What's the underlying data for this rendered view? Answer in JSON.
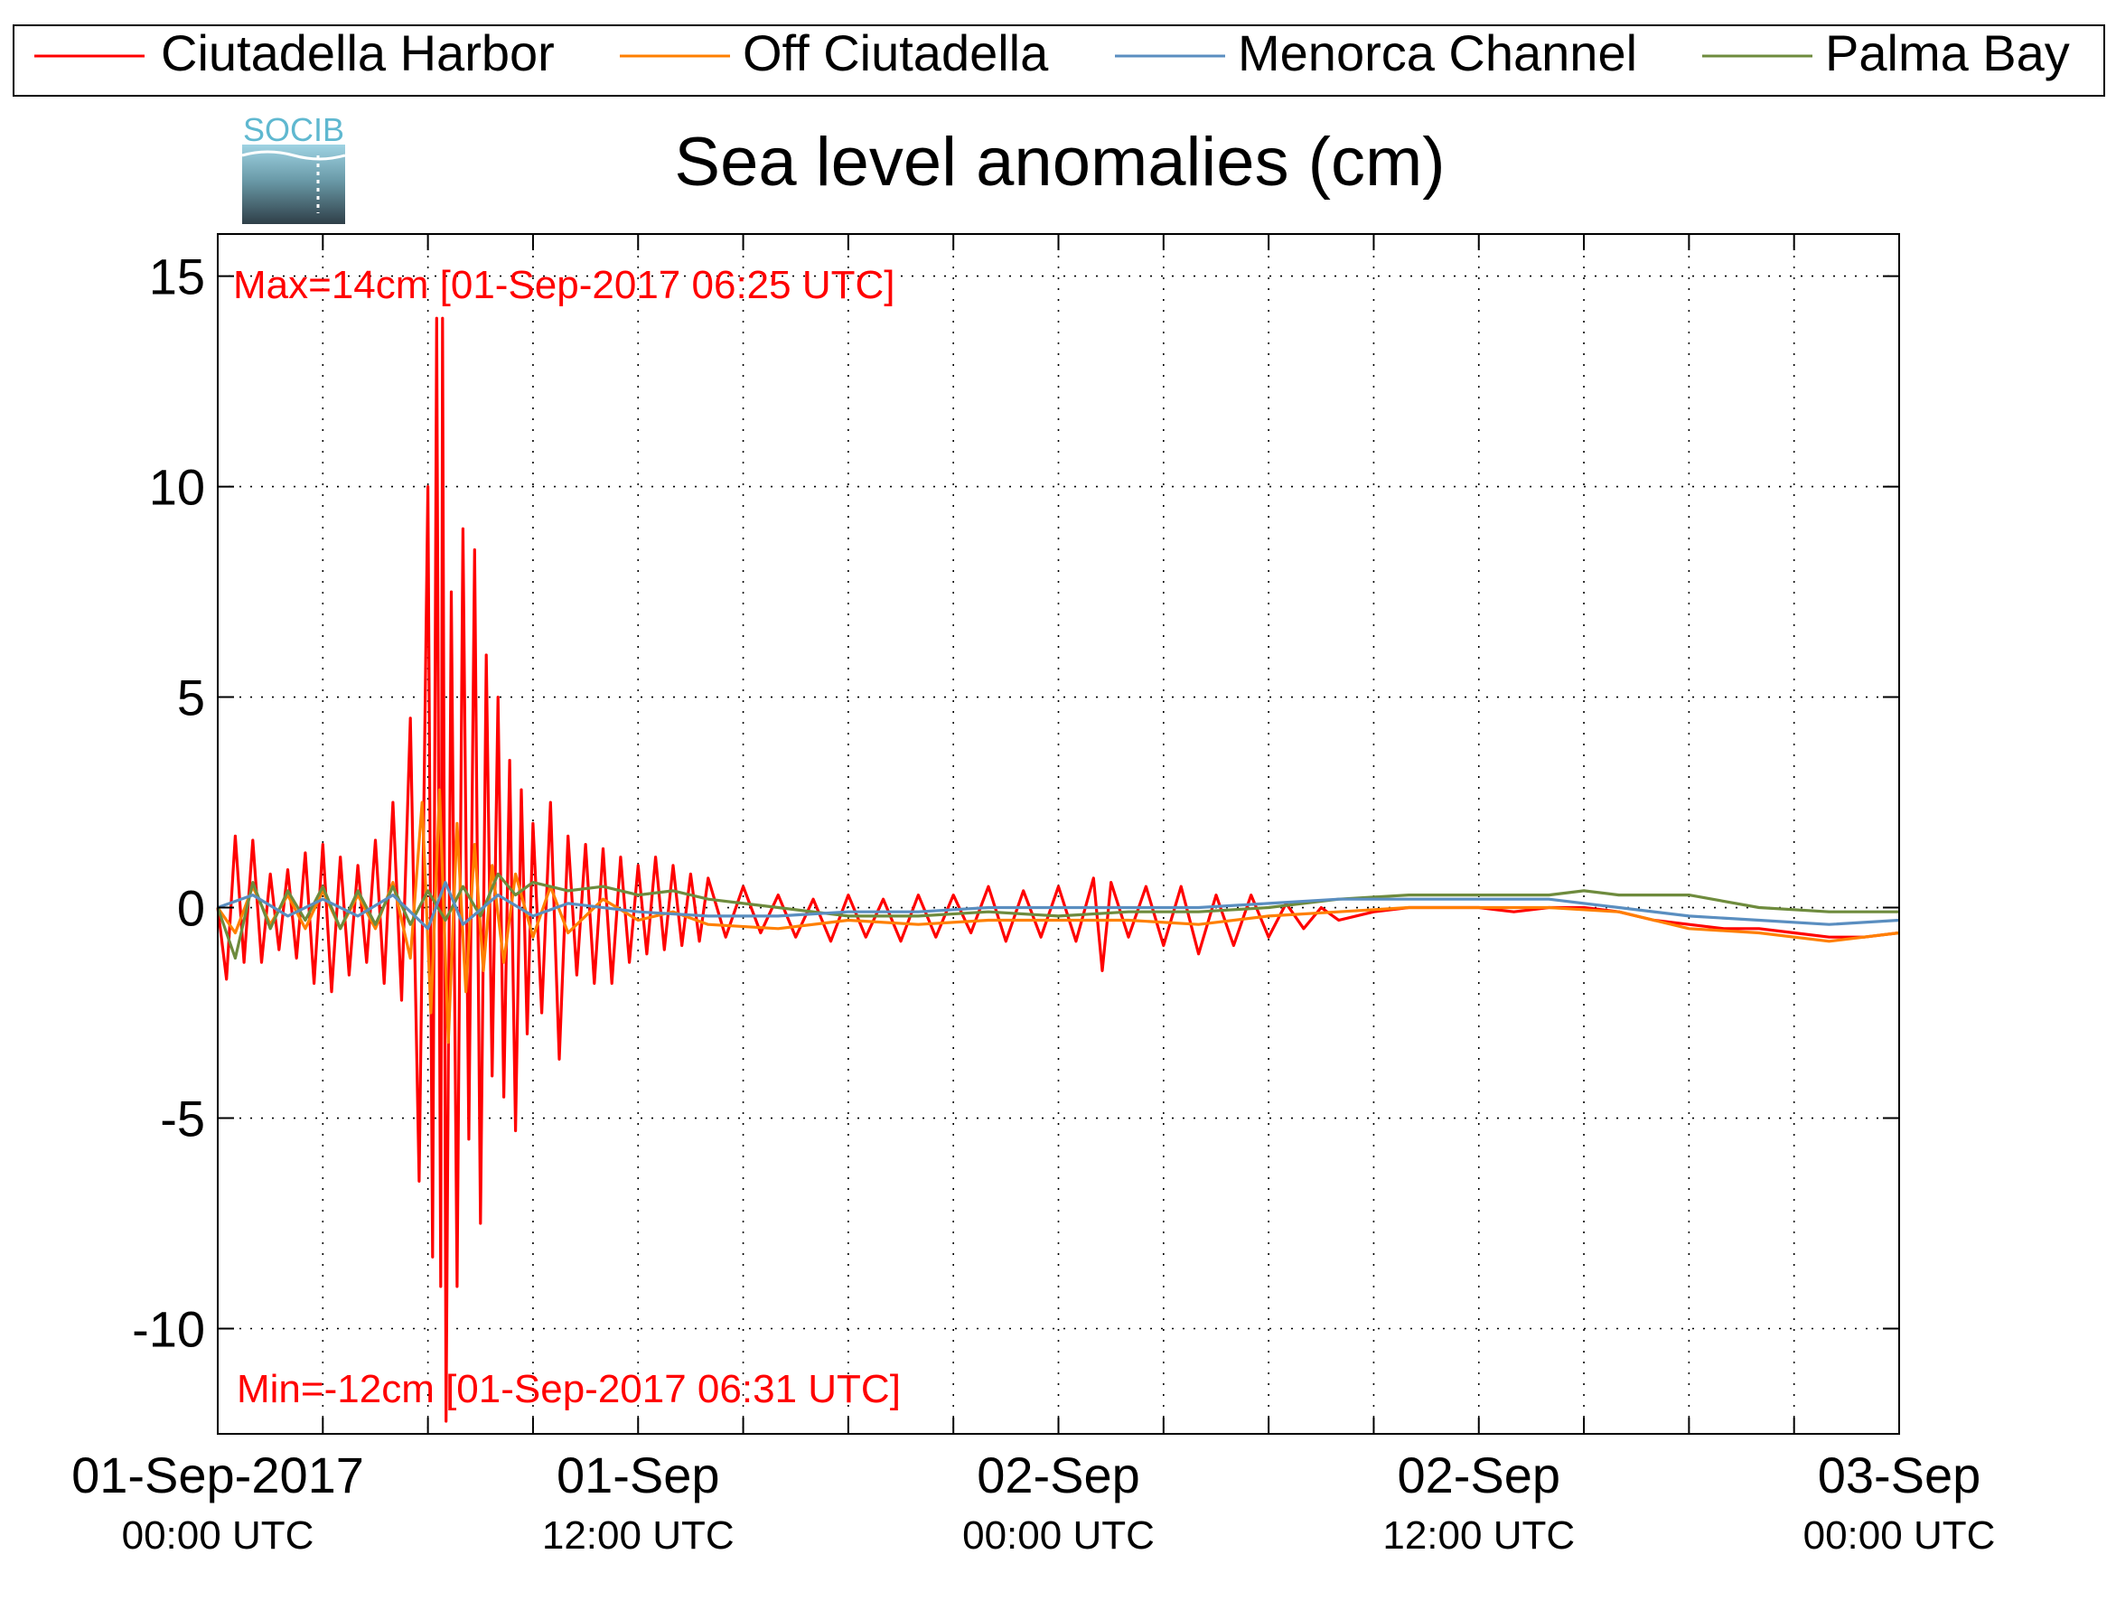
{
  "chart_data": {
    "type": "line",
    "title": "Sea level anomalies (cm)",
    "logo_text": "SOCIB",
    "xlabel": "",
    "ylabel": "",
    "x_range": [
      "2017-09-01T00:00Z",
      "2017-09-03T00:00Z"
    ],
    "ylim": [
      -12.5,
      16.0
    ],
    "y_ticks": [
      15,
      10,
      5,
      0,
      -5,
      -10
    ],
    "y_tick_labels": [
      "15",
      "10",
      "5",
      "0",
      "-5",
      "-10"
    ],
    "x_major_ticks": [
      {
        "t": "2017-09-01T00:00Z",
        "line1": "01-Sep-2017",
        "line2": "00:00 UTC"
      },
      {
        "t": "2017-09-01T12:00Z",
        "line1": "01-Sep",
        "line2": "12:00 UTC"
      },
      {
        "t": "2017-09-02T00:00Z",
        "line1": "02-Sep",
        "line2": "00:00 UTC"
      },
      {
        "t": "2017-09-02T12:00Z",
        "line1": "02-Sep",
        "line2": "12:00 UTC"
      },
      {
        "t": "2017-09-03T00:00Z",
        "line1": "03-Sep",
        "line2": "00:00 UTC"
      }
    ],
    "x_minor_tick_interval_hours": 3,
    "grid": true,
    "grid_style": "dotted",
    "legend_position": "top",
    "annotations": {
      "max": "Max=14cm [01-Sep-2017 06:25 UTC]",
      "min": "Min=-12cm [01-Sep-2017 06:31 UTC]"
    },
    "series": [
      {
        "name": "Ciutadella Harbor",
        "color": "#ff0000",
        "points": [
          [
            "2017-09-01T00:00Z",
            0.0
          ],
          [
            "2017-09-01T00:15Z",
            -1.7
          ],
          [
            "2017-09-01T00:30Z",
            1.7
          ],
          [
            "2017-09-01T00:45Z",
            -1.3
          ],
          [
            "2017-09-01T01:00Z",
            1.6
          ],
          [
            "2017-09-01T01:15Z",
            -1.3
          ],
          [
            "2017-09-01T01:30Z",
            0.8
          ],
          [
            "2017-09-01T01:45Z",
            -1.0
          ],
          [
            "2017-09-01T02:00Z",
            0.9
          ],
          [
            "2017-09-01T02:15Z",
            -1.2
          ],
          [
            "2017-09-01T02:30Z",
            1.3
          ],
          [
            "2017-09-01T02:45Z",
            -1.8
          ],
          [
            "2017-09-01T03:00Z",
            1.5
          ],
          [
            "2017-09-01T03:15Z",
            -2.0
          ],
          [
            "2017-09-01T03:30Z",
            1.2
          ],
          [
            "2017-09-01T03:45Z",
            -1.6
          ],
          [
            "2017-09-01T04:00Z",
            1.0
          ],
          [
            "2017-09-01T04:15Z",
            -1.3
          ],
          [
            "2017-09-01T04:30Z",
            1.6
          ],
          [
            "2017-09-01T04:45Z",
            -1.8
          ],
          [
            "2017-09-01T05:00Z",
            2.5
          ],
          [
            "2017-09-01T05:15Z",
            -2.2
          ],
          [
            "2017-09-01T05:30Z",
            4.5
          ],
          [
            "2017-09-01T05:45Z",
            -6.5
          ],
          [
            "2017-09-01T06:00Z",
            10.0
          ],
          [
            "2017-09-01T06:08Z",
            -8.3
          ],
          [
            "2017-09-01T06:15Z",
            14.0
          ],
          [
            "2017-09-01T06:22Z",
            -9.0
          ],
          [
            "2017-09-01T06:25Z",
            14.0
          ],
          [
            "2017-09-01T06:31Z",
            -12.2
          ],
          [
            "2017-09-01T06:40Z",
            7.5
          ],
          [
            "2017-09-01T06:50Z",
            -9.0
          ],
          [
            "2017-09-01T07:00Z",
            9.0
          ],
          [
            "2017-09-01T07:10Z",
            -5.5
          ],
          [
            "2017-09-01T07:20Z",
            8.5
          ],
          [
            "2017-09-01T07:30Z",
            -7.5
          ],
          [
            "2017-09-01T07:40Z",
            6.0
          ],
          [
            "2017-09-01T07:50Z",
            -4.0
          ],
          [
            "2017-09-01T08:00Z",
            5.0
          ],
          [
            "2017-09-01T08:10Z",
            -4.5
          ],
          [
            "2017-09-01T08:20Z",
            3.5
          ],
          [
            "2017-09-01T08:30Z",
            -5.3
          ],
          [
            "2017-09-01T08:40Z",
            2.8
          ],
          [
            "2017-09-01T08:50Z",
            -3.0
          ],
          [
            "2017-09-01T09:00Z",
            2.0
          ],
          [
            "2017-09-01T09:15Z",
            -2.5
          ],
          [
            "2017-09-01T09:30Z",
            2.5
          ],
          [
            "2017-09-01T09:45Z",
            -3.6
          ],
          [
            "2017-09-01T10:00Z",
            1.7
          ],
          [
            "2017-09-01T10:15Z",
            -1.6
          ],
          [
            "2017-09-01T10:30Z",
            1.5
          ],
          [
            "2017-09-01T10:45Z",
            -1.8
          ],
          [
            "2017-09-01T11:00Z",
            1.4
          ],
          [
            "2017-09-01T11:15Z",
            -1.8
          ],
          [
            "2017-09-01T11:30Z",
            1.2
          ],
          [
            "2017-09-01T11:45Z",
            -1.3
          ],
          [
            "2017-09-01T12:00Z",
            1.0
          ],
          [
            "2017-09-01T12:15Z",
            -1.1
          ],
          [
            "2017-09-01T12:30Z",
            1.2
          ],
          [
            "2017-09-01T12:45Z",
            -1.0
          ],
          [
            "2017-09-01T13:00Z",
            1.0
          ],
          [
            "2017-09-01T13:15Z",
            -0.9
          ],
          [
            "2017-09-01T13:30Z",
            0.8
          ],
          [
            "2017-09-01T13:45Z",
            -0.8
          ],
          [
            "2017-09-01T14:00Z",
            0.7
          ],
          [
            "2017-09-01T14:30Z",
            -0.7
          ],
          [
            "2017-09-01T15:00Z",
            0.5
          ],
          [
            "2017-09-01T15:30Z",
            -0.6
          ],
          [
            "2017-09-01T16:00Z",
            0.3
          ],
          [
            "2017-09-01T16:30Z",
            -0.7
          ],
          [
            "2017-09-01T17:00Z",
            0.2
          ],
          [
            "2017-09-01T17:30Z",
            -0.8
          ],
          [
            "2017-09-01T18:00Z",
            0.3
          ],
          [
            "2017-09-01T18:30Z",
            -0.7
          ],
          [
            "2017-09-01T19:00Z",
            0.2
          ],
          [
            "2017-09-01T19:30Z",
            -0.8
          ],
          [
            "2017-09-01T20:00Z",
            0.3
          ],
          [
            "2017-09-01T20:30Z",
            -0.7
          ],
          [
            "2017-09-01T21:00Z",
            0.3
          ],
          [
            "2017-09-01T21:30Z",
            -0.6
          ],
          [
            "2017-09-01T22:00Z",
            0.5
          ],
          [
            "2017-09-01T22:30Z",
            -0.8
          ],
          [
            "2017-09-01T23:00Z",
            0.4
          ],
          [
            "2017-09-01T23:30Z",
            -0.7
          ],
          [
            "2017-09-02T00:00Z",
            0.5
          ],
          [
            "2017-09-02T00:30Z",
            -0.8
          ],
          [
            "2017-09-02T01:00Z",
            0.7
          ],
          [
            "2017-09-02T01:15Z",
            -1.5
          ],
          [
            "2017-09-02T01:30Z",
            0.6
          ],
          [
            "2017-09-02T02:00Z",
            -0.7
          ],
          [
            "2017-09-02T02:30Z",
            0.5
          ],
          [
            "2017-09-02T03:00Z",
            -0.9
          ],
          [
            "2017-09-02T03:30Z",
            0.5
          ],
          [
            "2017-09-02T04:00Z",
            -1.1
          ],
          [
            "2017-09-02T04:30Z",
            0.3
          ],
          [
            "2017-09-02T05:00Z",
            -0.9
          ],
          [
            "2017-09-02T05:30Z",
            0.3
          ],
          [
            "2017-09-02T06:00Z",
            -0.7
          ],
          [
            "2017-09-02T06:30Z",
            0.1
          ],
          [
            "2017-09-02T07:00Z",
            -0.5
          ],
          [
            "2017-09-02T07:30Z",
            0.0
          ],
          [
            "2017-09-02T08:00Z",
            -0.3
          ],
          [
            "2017-09-02T09:00Z",
            -0.1
          ],
          [
            "2017-09-02T10:00Z",
            0.0
          ],
          [
            "2017-09-02T11:00Z",
            0.0
          ],
          [
            "2017-09-02T12:00Z",
            0.0
          ],
          [
            "2017-09-02T13:00Z",
            -0.1
          ],
          [
            "2017-09-02T14:00Z",
            0.0
          ],
          [
            "2017-09-02T15:00Z",
            0.0
          ],
          [
            "2017-09-02T16:00Z",
            -0.1
          ],
          [
            "2017-09-02T17:00Z",
            -0.3
          ],
          [
            "2017-09-02T18:00Z",
            -0.4
          ],
          [
            "2017-09-02T19:00Z",
            -0.5
          ],
          [
            "2017-09-02T20:00Z",
            -0.5
          ],
          [
            "2017-09-02T21:00Z",
            -0.6
          ],
          [
            "2017-09-02T22:00Z",
            -0.7
          ],
          [
            "2017-09-02T23:00Z",
            -0.7
          ],
          [
            "2017-09-03T00:00Z",
            -0.6
          ]
        ]
      },
      {
        "name": "Off Ciutadella",
        "color": "#ff7f00",
        "points": [
          [
            "2017-09-01T00:00Z",
            0.0
          ],
          [
            "2017-09-01T00:30Z",
            -0.6
          ],
          [
            "2017-09-01T01:00Z",
            0.5
          ],
          [
            "2017-09-01T01:30Z",
            -0.4
          ],
          [
            "2017-09-01T02:00Z",
            0.3
          ],
          [
            "2017-09-01T02:30Z",
            -0.5
          ],
          [
            "2017-09-01T03:00Z",
            0.4
          ],
          [
            "2017-09-01T03:30Z",
            -0.5
          ],
          [
            "2017-09-01T04:00Z",
            0.3
          ],
          [
            "2017-09-01T04:30Z",
            -0.5
          ],
          [
            "2017-09-01T05:00Z",
            0.6
          ],
          [
            "2017-09-01T05:30Z",
            -1.2
          ],
          [
            "2017-09-01T05:50Z",
            2.5
          ],
          [
            "2017-09-01T06:05Z",
            -2.5
          ],
          [
            "2017-09-01T06:20Z",
            2.8
          ],
          [
            "2017-09-01T06:35Z",
            -3.2
          ],
          [
            "2017-09-01T06:50Z",
            2.0
          ],
          [
            "2017-09-01T07:05Z",
            -2.0
          ],
          [
            "2017-09-01T07:20Z",
            1.5
          ],
          [
            "2017-09-01T07:35Z",
            -1.5
          ],
          [
            "2017-09-01T07:50Z",
            1.0
          ],
          [
            "2017-09-01T08:10Z",
            -1.3
          ],
          [
            "2017-09-01T08:30Z",
            0.8
          ],
          [
            "2017-09-01T09:00Z",
            -0.7
          ],
          [
            "2017-09-01T09:30Z",
            0.5
          ],
          [
            "2017-09-01T10:00Z",
            -0.6
          ],
          [
            "2017-09-01T11:00Z",
            0.2
          ],
          [
            "2017-09-01T12:00Z",
            -0.3
          ],
          [
            "2017-09-01T13:00Z",
            -0.1
          ],
          [
            "2017-09-01T14:00Z",
            -0.4
          ],
          [
            "2017-09-01T16:00Z",
            -0.5
          ],
          [
            "2017-09-01T18:00Z",
            -0.3
          ],
          [
            "2017-09-01T20:00Z",
            -0.4
          ],
          [
            "2017-09-01T22:00Z",
            -0.3
          ],
          [
            "2017-09-02T00:00Z",
            -0.3
          ],
          [
            "2017-09-02T02:00Z",
            -0.3
          ],
          [
            "2017-09-02T04:00Z",
            -0.4
          ],
          [
            "2017-09-02T06:00Z",
            -0.2
          ],
          [
            "2017-09-02T08:00Z",
            -0.1
          ],
          [
            "2017-09-02T10:00Z",
            0.0
          ],
          [
            "2017-09-02T12:00Z",
            0.0
          ],
          [
            "2017-09-02T14:00Z",
            0.0
          ],
          [
            "2017-09-02T16:00Z",
            -0.1
          ],
          [
            "2017-09-02T18:00Z",
            -0.5
          ],
          [
            "2017-09-02T20:00Z",
            -0.6
          ],
          [
            "2017-09-02T22:00Z",
            -0.8
          ],
          [
            "2017-09-03T00:00Z",
            -0.6
          ]
        ]
      },
      {
        "name": "Menorca Channel",
        "color": "#5a8ec0",
        "points": [
          [
            "2017-09-01T00:00Z",
            0.0
          ],
          [
            "2017-09-01T01:00Z",
            0.3
          ],
          [
            "2017-09-01T02:00Z",
            -0.2
          ],
          [
            "2017-09-01T03:00Z",
            0.2
          ],
          [
            "2017-09-01T04:00Z",
            -0.2
          ],
          [
            "2017-09-01T05:00Z",
            0.3
          ],
          [
            "2017-09-01T06:00Z",
            -0.5
          ],
          [
            "2017-09-01T06:30Z",
            0.6
          ],
          [
            "2017-09-01T07:00Z",
            -0.4
          ],
          [
            "2017-09-01T08:00Z",
            0.3
          ],
          [
            "2017-09-01T09:00Z",
            -0.2
          ],
          [
            "2017-09-01T10:00Z",
            0.1
          ],
          [
            "2017-09-01T12:00Z",
            -0.1
          ],
          [
            "2017-09-01T14:00Z",
            -0.2
          ],
          [
            "2017-09-01T16:00Z",
            -0.2
          ],
          [
            "2017-09-01T18:00Z",
            -0.1
          ],
          [
            "2017-09-01T20:00Z",
            -0.1
          ],
          [
            "2017-09-01T22:00Z",
            0.0
          ],
          [
            "2017-09-02T00:00Z",
            0.0
          ],
          [
            "2017-09-02T02:00Z",
            0.0
          ],
          [
            "2017-09-02T04:00Z",
            0.0
          ],
          [
            "2017-09-02T06:00Z",
            0.1
          ],
          [
            "2017-09-02T08:00Z",
            0.2
          ],
          [
            "2017-09-02T10:00Z",
            0.2
          ],
          [
            "2017-09-02T12:00Z",
            0.2
          ],
          [
            "2017-09-02T14:00Z",
            0.2
          ],
          [
            "2017-09-02T16:00Z",
            0.0
          ],
          [
            "2017-09-02T18:00Z",
            -0.2
          ],
          [
            "2017-09-02T20:00Z",
            -0.3
          ],
          [
            "2017-09-02T22:00Z",
            -0.4
          ],
          [
            "2017-09-03T00:00Z",
            -0.3
          ]
        ]
      },
      {
        "name": "Palma Bay",
        "color": "#6e8b3d",
        "points": [
          [
            "2017-09-01T00:00Z",
            0.0
          ],
          [
            "2017-09-01T00:30Z",
            -1.2
          ],
          [
            "2017-09-01T01:00Z",
            0.6
          ],
          [
            "2017-09-01T01:30Z",
            -0.5
          ],
          [
            "2017-09-01T02:00Z",
            0.4
          ],
          [
            "2017-09-01T02:30Z",
            -0.3
          ],
          [
            "2017-09-01T03:00Z",
            0.5
          ],
          [
            "2017-09-01T03:30Z",
            -0.5
          ],
          [
            "2017-09-01T04:00Z",
            0.4
          ],
          [
            "2017-09-01T04:30Z",
            -0.4
          ],
          [
            "2017-09-01T05:00Z",
            0.5
          ],
          [
            "2017-09-01T05:30Z",
            -0.4
          ],
          [
            "2017-09-01T06:00Z",
            0.4
          ],
          [
            "2017-09-01T06:30Z",
            -0.3
          ],
          [
            "2017-09-01T07:00Z",
            0.5
          ],
          [
            "2017-09-01T07:30Z",
            -0.2
          ],
          [
            "2017-09-01T08:00Z",
            0.8
          ],
          [
            "2017-09-01T08:30Z",
            0.3
          ],
          [
            "2017-09-01T09:00Z",
            0.6
          ],
          [
            "2017-09-01T10:00Z",
            0.4
          ],
          [
            "2017-09-01T11:00Z",
            0.5
          ],
          [
            "2017-09-01T12:00Z",
            0.3
          ],
          [
            "2017-09-01T13:00Z",
            0.4
          ],
          [
            "2017-09-01T14:00Z",
            0.2
          ],
          [
            "2017-09-01T15:00Z",
            0.1
          ],
          [
            "2017-09-01T16:00Z",
            0.0
          ],
          [
            "2017-09-01T17:00Z",
            -0.1
          ],
          [
            "2017-09-01T18:00Z",
            -0.2
          ],
          [
            "2017-09-01T20:00Z",
            -0.2
          ],
          [
            "2017-09-01T22:00Z",
            -0.1
          ],
          [
            "2017-09-02T00:00Z",
            -0.2
          ],
          [
            "2017-09-02T02:00Z",
            -0.1
          ],
          [
            "2017-09-02T04:00Z",
            -0.1
          ],
          [
            "2017-09-02T06:00Z",
            0.0
          ],
          [
            "2017-09-02T08:00Z",
            0.2
          ],
          [
            "2017-09-02T10:00Z",
            0.3
          ],
          [
            "2017-09-02T12:00Z",
            0.3
          ],
          [
            "2017-09-02T14:00Z",
            0.3
          ],
          [
            "2017-09-02T15:00Z",
            0.4
          ],
          [
            "2017-09-02T16:00Z",
            0.3
          ],
          [
            "2017-09-02T18:00Z",
            0.3
          ],
          [
            "2017-09-02T20:00Z",
            0.0
          ],
          [
            "2017-09-02T22:00Z",
            -0.1
          ],
          [
            "2017-09-03T00:00Z",
            -0.1
          ]
        ]
      }
    ]
  }
}
